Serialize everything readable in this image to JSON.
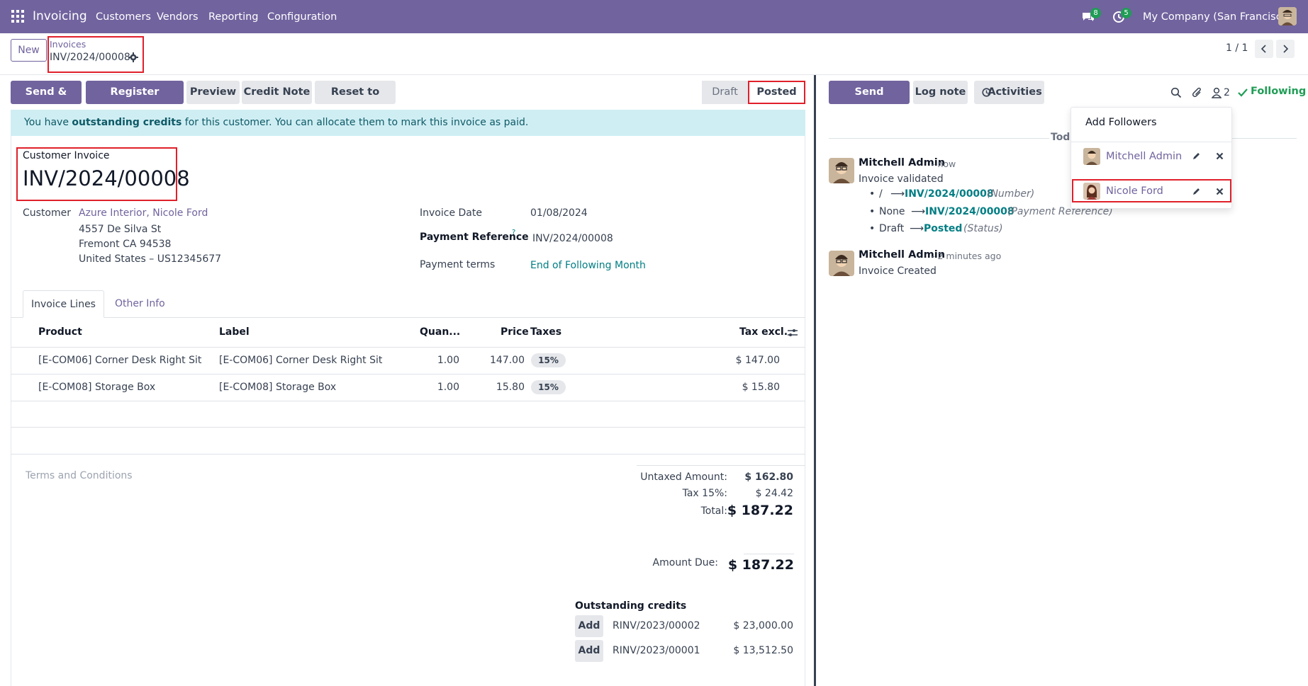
{
  "navbar": {
    "app": "Invoicing",
    "menu": [
      "Customers",
      "Vendors",
      "Reporting",
      "Configuration"
    ],
    "messages_badge": "8",
    "activities_badge": "5",
    "company": "My Company (San Francisco)",
    "icons": [
      "apps-grid-icon",
      "chat-icon",
      "clock-icon",
      "user-avatar"
    ]
  },
  "control": {
    "new_label": "New",
    "breadcrumb_parent": "Invoices",
    "breadcrumb_current": "INV/2024/00008",
    "pager": "1 / 1"
  },
  "actions": {
    "send_print": "Send & Print",
    "register_payment": "Register Payment",
    "preview": "Preview",
    "credit_note": "Credit Note",
    "reset_draft": "Reset to Draft"
  },
  "status": {
    "draft": "Draft",
    "posted": "Posted"
  },
  "alert": {
    "pre": "You have ",
    "bold": "outstanding credits",
    "post": " for this customer. You can allocate them to mark this invoice as paid."
  },
  "invoice": {
    "type": "Customer Invoice",
    "number": "INV/2024/00008",
    "customer_label": "Customer",
    "customer_name": "Azure Interior, Nicole Ford",
    "address1": "4557 De Silva St",
    "address2": "Fremont CA 94538",
    "address3": "United States – US12345677",
    "date_label": "Invoice Date",
    "date_value": "01/08/2024",
    "payref_label": "Payment Reference",
    "payref_help": "?",
    "payref_value": "INV/2024/00008",
    "terms_label": "Payment terms",
    "terms_value": "End of Following Month"
  },
  "tabs": {
    "lines": "Invoice Lines",
    "other": "Other Info"
  },
  "table": {
    "headers": [
      "Product",
      "Label",
      "Quan...",
      "Price",
      "Taxes",
      "Tax excl."
    ],
    "rows": [
      {
        "product": "[E-COM06] Corner Desk Right Sit",
        "label": "[E-COM06] Corner Desk Right Sit",
        "qty": "1.00",
        "price": "147.00",
        "tax": "15%",
        "subtotal": "$ 147.00"
      },
      {
        "product": "[E-COM08] Storage Box",
        "label": "[E-COM08] Storage Box",
        "qty": "1.00",
        "price": "15.80",
        "tax": "15%",
        "subtotal": "$ 15.80"
      }
    ]
  },
  "terms_placeholder": "Terms and Conditions",
  "totals": {
    "untaxed_label": "Untaxed Amount:",
    "untaxed_value": "$ 162.80",
    "tax_label": "Tax 15%:",
    "tax_value": "$ 24.42",
    "total_label": "Total:",
    "total_value": "$ 187.22",
    "due_label": "Amount Due:",
    "due_value": "$ 187.22"
  },
  "outstanding": {
    "title": "Outstanding credits",
    "add_label": "Add",
    "items": [
      {
        "ref": "RINV/2023/00002",
        "amount": "$ 23,000.00"
      },
      {
        "ref": "RINV/2023/00001",
        "amount": "$ 13,512.50"
      }
    ]
  },
  "chatter": {
    "send_message": "Send message",
    "log_note": "Log note",
    "activities": "Activities",
    "followers_count": "2",
    "following": "Following",
    "today": "Today",
    "messages": [
      {
        "author": "Mitchell Admin",
        "time": "- now",
        "text": "Invoice validated",
        "tracking": [
          {
            "old": "/",
            "new": "INV/2024/00008",
            "field": "(Number)"
          },
          {
            "old": "None",
            "new": "INV/2024/00008",
            "field": "(Payment Reference)"
          },
          {
            "old": "Draft",
            "new": "Posted",
            "field": "(Status)"
          }
        ]
      },
      {
        "author": "Mitchell Admin",
        "time": "- 2 minutes ago",
        "text": "Invoice Created"
      }
    ]
  },
  "followers_dropdown": {
    "add": "Add Followers",
    "followers": [
      "Mitchell Admin",
      "Nicole Ford"
    ]
  }
}
